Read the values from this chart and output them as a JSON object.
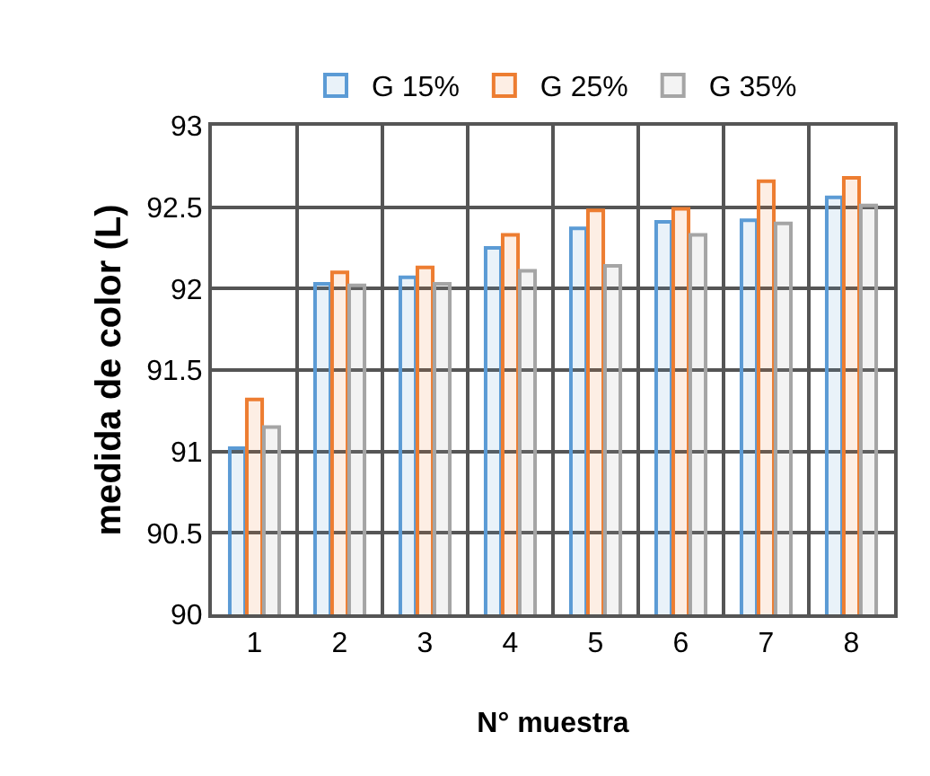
{
  "chart_data": {
    "type": "bar",
    "xlabel": "N° muestra",
    "ylabel": "medida de color (L)",
    "categories": [
      "1",
      "2",
      "3",
      "4",
      "5",
      "6",
      "7",
      "8"
    ],
    "series": [
      {
        "name": "G 15%",
        "color": "#5b9bd5",
        "values": [
          91.02,
          92.03,
          92.07,
          92.25,
          92.37,
          92.41,
          92.42,
          92.56
        ]
      },
      {
        "name": "G 25%",
        "color": "#ed7d31",
        "values": [
          91.32,
          92.1,
          92.13,
          92.33,
          92.48,
          92.49,
          92.66,
          92.68
        ]
      },
      {
        "name": "G 35%",
        "color": "#a5a5a5",
        "values": [
          91.15,
          92.02,
          92.03,
          92.11,
          92.14,
          92.33,
          92.4,
          92.51
        ]
      }
    ],
    "ylim": [
      90,
      93
    ],
    "yticks": [
      90,
      90.5,
      91,
      91.5,
      92,
      92.5,
      93
    ],
    "grid": true,
    "legend": "top"
  }
}
